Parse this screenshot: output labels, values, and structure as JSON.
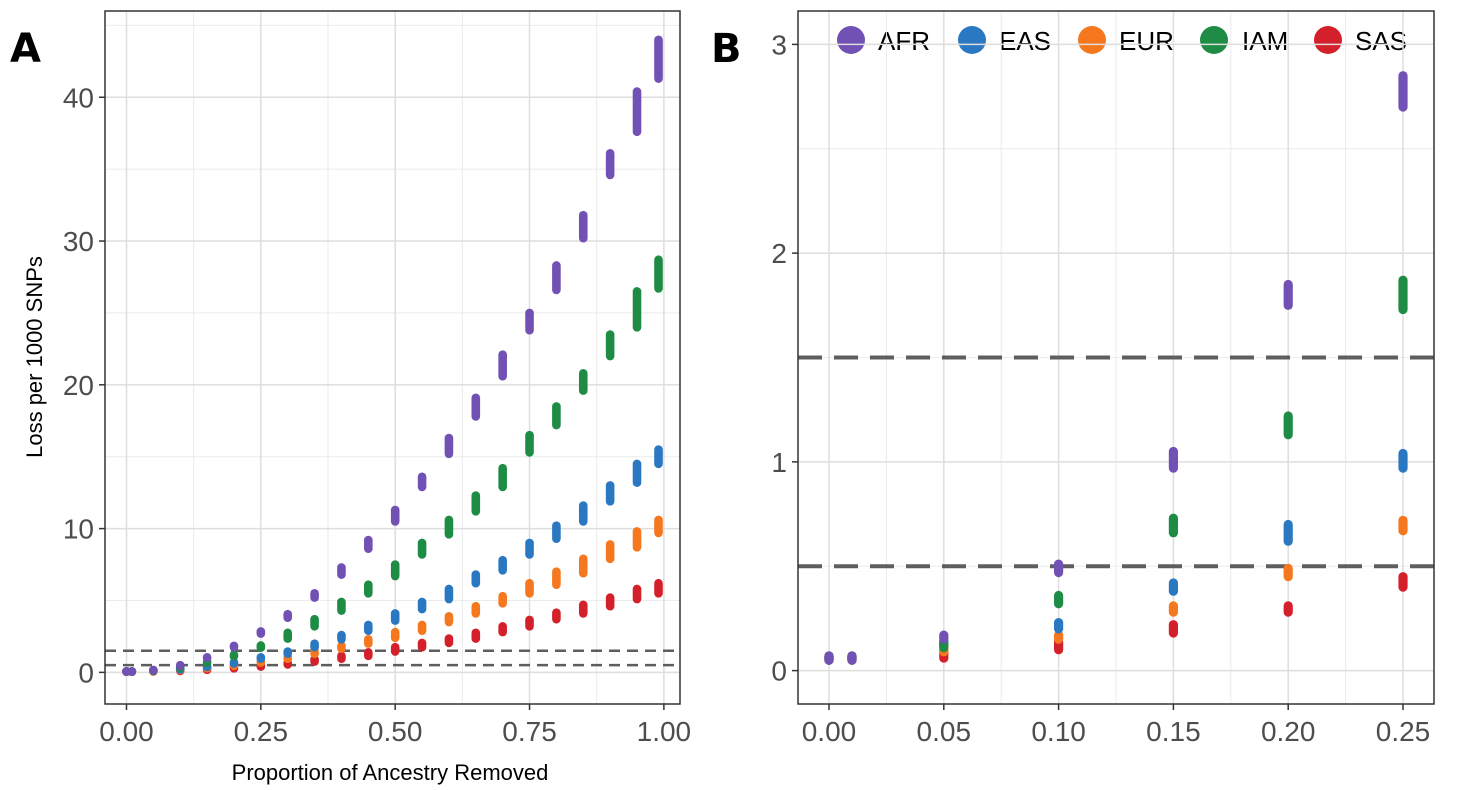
{
  "legend": {
    "entries": [
      {
        "name": "AFR",
        "color": "#7151B3"
      },
      {
        "name": "EAS",
        "color": "#2A78C2"
      },
      {
        "name": "EUR",
        "color": "#F5781E"
      },
      {
        "name": "IAM",
        "color": "#1E8C45"
      },
      {
        "name": "SAS",
        "color": "#D4202A"
      }
    ]
  },
  "chart_data": [
    {
      "panel": "A",
      "type": "scatter",
      "title": "",
      "xlabel": "Proportion of Ancestry Removed",
      "ylabel": "Loss per 1000 SNPs",
      "xlim": [
        -0.04,
        1.03
      ],
      "ylim": [
        -2.2,
        46
      ],
      "xticks": [
        "0.00",
        "0.25",
        "0.50",
        "0.75",
        "1.00"
      ],
      "yticks": [
        "0",
        "10",
        "20",
        "30",
        "40"
      ],
      "hlines": [
        0.5,
        1.5
      ],
      "grid": true,
      "x": [
        0.0,
        0.01,
        0.05,
        0.1,
        0.15,
        0.2,
        0.25,
        0.3,
        0.35,
        0.4,
        0.45,
        0.5,
        0.55,
        0.6,
        0.65,
        0.7,
        0.75,
        0.8,
        0.85,
        0.9,
        0.95,
        0.99
      ],
      "series": [
        {
          "name": "AFR",
          "low": [
            0.05,
            0.05,
            0.15,
            0.45,
            1.0,
            1.75,
            2.7,
            3.8,
            5.2,
            6.8,
            8.6,
            10.5,
            12.9,
            15.2,
            17.8,
            20.6,
            23.8,
            26.6,
            30.2,
            34.6,
            37.6,
            41.3
          ],
          "high": [
            0.07,
            0.07,
            0.17,
            0.5,
            1.05,
            1.85,
            2.85,
            4.05,
            5.5,
            7.3,
            9.2,
            11.3,
            13.6,
            16.3,
            19.1,
            22.1,
            25.0,
            28.3,
            31.8,
            36.1,
            40.4,
            44.0
          ]
        },
        {
          "name": "EAS",
          "low": [
            0.05,
            0.05,
            0.12,
            0.2,
            0.38,
            0.62,
            0.95,
            1.3,
            1.75,
            2.3,
            2.9,
            3.6,
            4.4,
            5.1,
            6.2,
            7.1,
            8.2,
            9.3,
            10.5,
            11.9,
            13.2,
            14.5
          ],
          "high": [
            0.07,
            0.07,
            0.14,
            0.23,
            0.42,
            0.7,
            1.05,
            1.45,
            2.0,
            2.6,
            3.3,
            4.1,
            4.9,
            5.8,
            6.8,
            7.8,
            9.0,
            10.2,
            11.6,
            13.0,
            14.5,
            15.5
          ]
        },
        {
          "name": "EUR",
          "low": [
            0.05,
            0.05,
            0.09,
            0.15,
            0.28,
            0.45,
            0.68,
            0.95,
            1.3,
            1.65,
            2.0,
            2.4,
            2.9,
            3.5,
            4.1,
            4.8,
            5.5,
            6.1,
            6.9,
            7.9,
            8.7,
            9.7
          ],
          "high": [
            0.07,
            0.07,
            0.11,
            0.17,
            0.31,
            0.5,
            0.73,
            1.05,
            1.45,
            1.85,
            2.3,
            2.8,
            3.3,
            3.9,
            4.6,
            5.3,
            6.2,
            7.0,
            7.9,
            8.9,
            9.8,
            10.6
          ]
        },
        {
          "name": "IAM",
          "low": [
            0.05,
            0.05,
            0.11,
            0.32,
            0.66,
            1.12,
            1.72,
            2.35,
            3.2,
            4.3,
            5.5,
            6.7,
            8.2,
            9.6,
            11.2,
            12.9,
            15.3,
            17.2,
            19.6,
            22.0,
            24.0,
            26.7
          ],
          "high": [
            0.07,
            0.07,
            0.14,
            0.36,
            0.73,
            1.22,
            1.87,
            2.75,
            3.7,
            4.9,
            6.1,
            7.5,
            9.0,
            10.6,
            12.3,
            14.2,
            16.5,
            18.5,
            20.8,
            23.5,
            26.5,
            28.7
          ]
        },
        {
          "name": "SAS",
          "low": [
            0.05,
            0.05,
            0.06,
            0.1,
            0.18,
            0.28,
            0.4,
            0.55,
            0.75,
            0.95,
            1.15,
            1.45,
            1.75,
            2.05,
            2.35,
            2.8,
            3.2,
            3.7,
            4.1,
            4.6,
            5.1,
            5.5
          ],
          "high": [
            0.07,
            0.07,
            0.09,
            0.14,
            0.22,
            0.31,
            0.45,
            0.65,
            0.9,
            1.15,
            1.4,
            1.75,
            2.05,
            2.35,
            2.75,
            3.2,
            3.65,
            4.15,
            4.7,
            5.2,
            5.8,
            6.2
          ]
        }
      ]
    },
    {
      "panel": "B",
      "type": "scatter",
      "title": "",
      "xlabel": "",
      "ylabel": "",
      "xlim": [
        -0.0135,
        0.2635
      ],
      "ylim": [
        -0.16,
        3.16
      ],
      "xticks": [
        "0.00",
        "0.05",
        "0.10",
        "0.15",
        "0.20",
        "0.25"
      ],
      "yticks": [
        "0",
        "1",
        "2",
        "3"
      ],
      "hlines": [
        0.5,
        1.5
      ],
      "grid": true,
      "x": [
        0.0,
        0.01,
        0.05,
        0.1,
        0.15,
        0.2,
        0.25
      ],
      "series": [
        {
          "name": "AFR",
          "low": [
            0.05,
            0.05,
            0.15,
            0.47,
            0.97,
            1.75,
            2.7
          ],
          "high": [
            0.07,
            0.07,
            0.17,
            0.51,
            1.05,
            1.85,
            2.85
          ]
        },
        {
          "name": "EAS",
          "low": [
            0.05,
            0.05,
            0.12,
            0.2,
            0.38,
            0.62,
            0.97
          ],
          "high": [
            0.07,
            0.07,
            0.14,
            0.23,
            0.42,
            0.7,
            1.04
          ]
        },
        {
          "name": "EUR",
          "low": [
            0.05,
            0.05,
            0.09,
            0.15,
            0.28,
            0.45,
            0.67
          ],
          "high": [
            0.07,
            0.07,
            0.11,
            0.17,
            0.31,
            0.49,
            0.72
          ]
        },
        {
          "name": "IAM",
          "low": [
            0.05,
            0.05,
            0.11,
            0.32,
            0.66,
            1.13,
            1.73
          ],
          "high": [
            0.07,
            0.07,
            0.14,
            0.36,
            0.73,
            1.22,
            1.87
          ]
        },
        {
          "name": "SAS",
          "low": [
            0.05,
            0.05,
            0.06,
            0.1,
            0.18,
            0.28,
            0.4
          ],
          "high": [
            0.07,
            0.07,
            0.09,
            0.14,
            0.22,
            0.31,
            0.45
          ]
        }
      ]
    }
  ]
}
